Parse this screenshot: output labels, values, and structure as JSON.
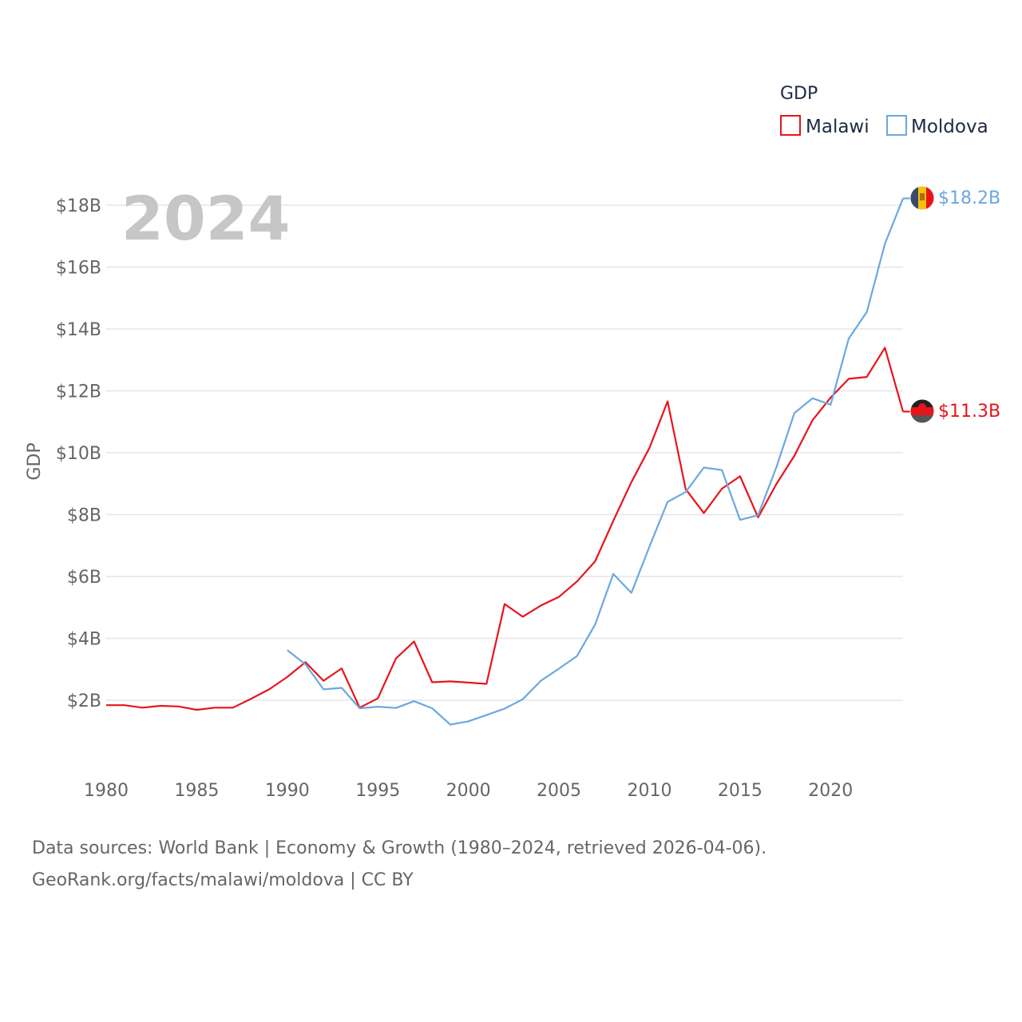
{
  "colors": {
    "malawi": "#e8141b",
    "moldova": "#6aa8e0",
    "grid": "#e6e6e6",
    "tick_text": "#666666",
    "watermark": "#c6c6c6",
    "legend_text": "#1e2a44"
  },
  "legend": {
    "title": "GDP",
    "items": [
      "Malawi",
      "Moldova"
    ]
  },
  "year_watermark": "2024",
  "footer": {
    "line1": "Data sources: World Bank | Economy & Growth (1980–2024, retrieved 2026-04-06).",
    "line2": "GeoRank.org/facts/malawi/moldova | CC BY"
  },
  "end_labels": {
    "moldova": "$18.2B",
    "malawi": "$11.3B"
  },
  "chart_data": {
    "type": "line",
    "title": "",
    "xlabel": "",
    "ylabel": "GDP",
    "xlim": [
      1980,
      2024
    ],
    "ylim": [
      0,
      19
    ],
    "x_ticks": [
      1980,
      1985,
      1990,
      1995,
      2000,
      2005,
      2010,
      2015,
      2020
    ],
    "y_ticks": [
      2,
      4,
      6,
      8,
      10,
      12,
      14,
      16,
      18
    ],
    "y_tick_labels": [
      "$2B",
      "$4B",
      "$6B",
      "$8B",
      "$10B",
      "$12B",
      "$14B",
      "$16B",
      "$18B"
    ],
    "unit": "billion US$",
    "series": [
      {
        "name": "Malawi",
        "color": "#e8141b",
        "x": [
          1980,
          1981,
          1982,
          1983,
          1984,
          1985,
          1986,
          1987,
          1988,
          1989,
          1990,
          1991,
          1992,
          1993,
          1994,
          1995,
          1996,
          1997,
          1998,
          1999,
          2000,
          2001,
          2002,
          2003,
          2004,
          2005,
          2006,
          2007,
          2008,
          2009,
          2010,
          2011,
          2012,
          2013,
          2014,
          2015,
          2016,
          2017,
          2018,
          2019,
          2020,
          2021,
          2022,
          2023,
          2024
        ],
        "values": [
          1.84,
          1.84,
          1.76,
          1.82,
          1.8,
          1.69,
          1.76,
          1.76,
          2.05,
          2.35,
          2.75,
          3.23,
          2.63,
          3.03,
          1.76,
          2.06,
          3.35,
          3.9,
          2.58,
          2.61,
          2.57,
          2.53,
          5.11,
          4.7,
          5.06,
          5.34,
          5.84,
          6.49,
          7.8,
          9.05,
          10.16,
          11.66,
          8.82,
          8.05,
          8.84,
          9.24,
          7.91,
          8.98,
          9.9,
          11.05,
          11.78,
          12.39,
          12.45,
          13.39,
          11.33
        ]
      },
      {
        "name": "Moldova",
        "color": "#6aa8e0",
        "x": [
          1990,
          1991,
          1992,
          1993,
          1994,
          1995,
          1996,
          1997,
          1998,
          1999,
          2000,
          2001,
          2002,
          2003,
          2004,
          2005,
          2006,
          2007,
          2008,
          2009,
          2010,
          2011,
          2012,
          2013,
          2014,
          2015,
          2016,
          2017,
          2018,
          2019,
          2020,
          2021,
          2022,
          2023,
          2024
        ],
        "values": [
          3.62,
          3.16,
          2.35,
          2.4,
          1.74,
          1.79,
          1.75,
          1.97,
          1.74,
          1.21,
          1.32,
          1.52,
          1.73,
          2.03,
          2.63,
          3.02,
          3.43,
          4.45,
          6.08,
          5.47,
          6.97,
          8.41,
          8.73,
          9.52,
          9.44,
          7.83,
          7.98,
          9.52,
          11.28,
          11.76,
          11.55,
          13.69,
          14.55,
          16.75,
          18.22
        ]
      }
    ]
  }
}
